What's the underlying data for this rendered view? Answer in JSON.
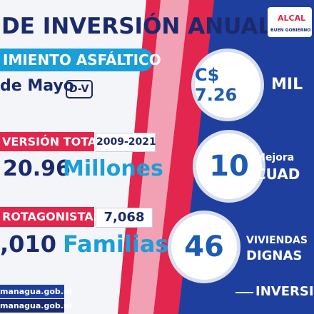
{
  "title": "DE INVERSIÓN ANUAL",
  "subtitle": "IMIENTO ASFÁLTICO",
  "date": "de Mayo",
  "date_tag": "D-V",
  "investment": {
    "label": "VERSIÓN TOTAL",
    "period": "2009-2021",
    "amount": "20.96",
    "unit": "Millones"
  },
  "protagonists": {
    "label": "ROTAGONISTAS",
    "count": "7,068",
    "families": ",010",
    "unit": "Familias"
  },
  "stats": [
    {
      "value": "C$ 7.26",
      "lines": [
        "MIL"
      ]
    },
    {
      "value": "10",
      "lines": [
        "Mejora",
        "CUAD"
      ]
    },
    {
      "value": "46",
      "lines": [
        "VIVIENDAS",
        "DIGNAS"
      ]
    }
  ],
  "footer_right": "INVERSIÓ",
  "website": [
    "managua.gob.ni",
    "managua.gob.ni"
  ],
  "logo": {
    "name": "ALCAL",
    "motto": "BUEN GOBIERNO"
  }
}
